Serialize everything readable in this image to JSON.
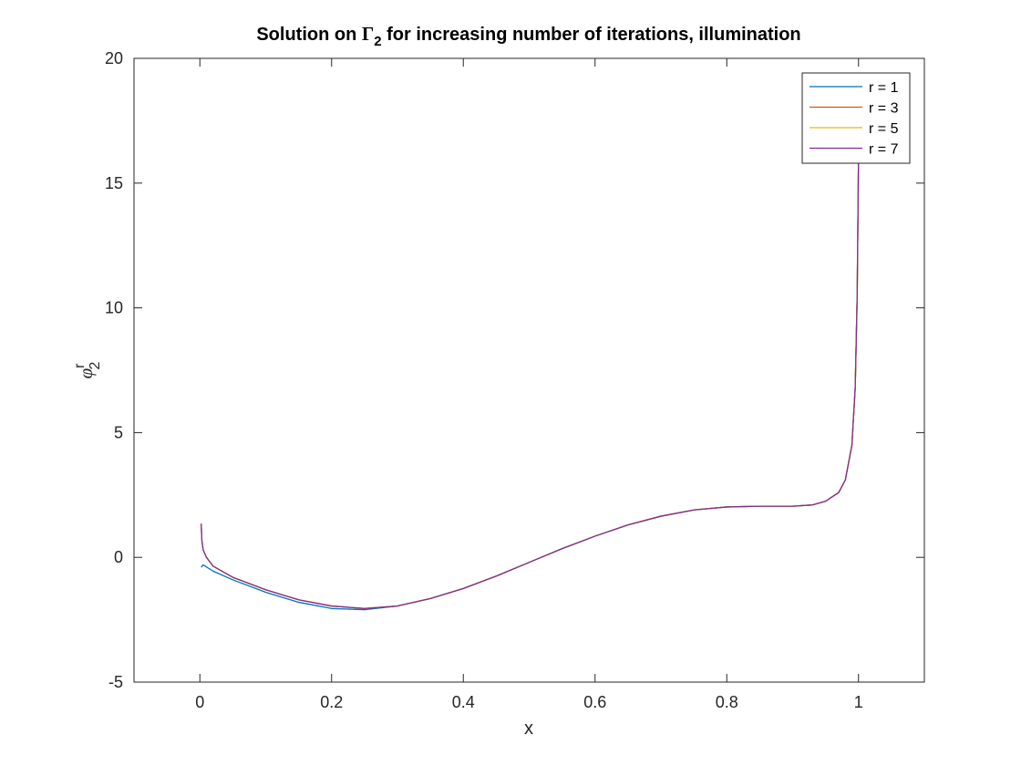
{
  "chart_data": {
    "type": "line",
    "title": {
      "prefix": "Solution on ",
      "symbol": "Γ",
      "subscript": "2",
      "suffix": " for increasing number of iterations, illumination"
    },
    "xlabel": "x",
    "ylabel": {
      "symbol": "φ",
      "superscript": "r",
      "subscript": "2"
    },
    "xlim": [
      -0.1,
      1.1
    ],
    "ylim": [
      -5,
      20
    ],
    "xticks": [
      0,
      0.2,
      0.4,
      0.6,
      0.8,
      1
    ],
    "xtick_labels": [
      "0",
      "0.2",
      "0.4",
      "0.6",
      "0.8",
      "1"
    ],
    "yticks": [
      -5,
      0,
      5,
      10,
      15,
      20
    ],
    "ytick_labels": [
      "-5",
      "0",
      "5",
      "10",
      "15",
      "20"
    ],
    "grid": false,
    "legend_position": "top-right",
    "series": [
      {
        "name": "r = 1",
        "color": "#0072BD",
        "x": [
          0.002,
          0.005,
          0.02,
          0.05,
          0.1,
          0.15,
          0.2,
          0.25,
          0.3,
          0.35,
          0.4,
          0.45,
          0.5,
          0.55,
          0.6,
          0.65,
          0.7,
          0.75,
          0.8,
          0.85,
          0.9,
          0.93,
          0.95,
          0.97,
          0.98,
          0.99,
          0.995,
          0.998,
          1.0
        ],
        "y": [
          -0.4,
          -0.3,
          -0.55,
          -0.9,
          -1.4,
          -1.8,
          -2.05,
          -2.1,
          -1.95,
          -1.65,
          -1.25,
          -0.75,
          -0.2,
          0.35,
          0.85,
          1.3,
          1.65,
          1.9,
          2.02,
          2.05,
          2.05,
          2.1,
          2.25,
          2.6,
          3.1,
          4.5,
          6.8,
          10.5,
          16.0
        ]
      },
      {
        "name": "r = 3",
        "color": "#D95319",
        "x": [
          0.002,
          0.003,
          0.005,
          0.01,
          0.02,
          0.05,
          0.1,
          0.15,
          0.2,
          0.25,
          0.3,
          0.35,
          0.4,
          0.45,
          0.5,
          0.55,
          0.6,
          0.65,
          0.7,
          0.75,
          0.8,
          0.85,
          0.9,
          0.93,
          0.95,
          0.97,
          0.98,
          0.99,
          0.995,
          0.998,
          1.0
        ],
        "y": [
          1.35,
          0.7,
          0.3,
          0.0,
          -0.35,
          -0.8,
          -1.3,
          -1.7,
          -1.95,
          -2.05,
          -1.95,
          -1.65,
          -1.25,
          -0.75,
          -0.2,
          0.35,
          0.85,
          1.3,
          1.65,
          1.9,
          2.02,
          2.05,
          2.05,
          2.1,
          2.25,
          2.6,
          3.1,
          4.5,
          6.8,
          10.5,
          16.0
        ]
      },
      {
        "name": "r = 5",
        "color": "#EDB120",
        "x": [
          0.002,
          0.003,
          0.005,
          0.01,
          0.02,
          0.05,
          0.1,
          0.15,
          0.2,
          0.25,
          0.3,
          0.35,
          0.4,
          0.45,
          0.5,
          0.55,
          0.6,
          0.65,
          0.7,
          0.75,
          0.8,
          0.85,
          0.9,
          0.93,
          0.95,
          0.97,
          0.98,
          0.99,
          0.995,
          0.998,
          1.0
        ],
        "y": [
          1.35,
          0.7,
          0.3,
          0.0,
          -0.35,
          -0.8,
          -1.3,
          -1.7,
          -1.95,
          -2.05,
          -1.95,
          -1.65,
          -1.25,
          -0.75,
          -0.2,
          0.35,
          0.85,
          1.3,
          1.65,
          1.9,
          2.02,
          2.05,
          2.05,
          2.1,
          2.25,
          2.6,
          3.1,
          4.5,
          6.8,
          10.5,
          16.0
        ]
      },
      {
        "name": "r = 7",
        "color": "#7E2F8E",
        "x": [
          0.002,
          0.003,
          0.005,
          0.01,
          0.02,
          0.05,
          0.1,
          0.15,
          0.2,
          0.25,
          0.3,
          0.35,
          0.4,
          0.45,
          0.5,
          0.55,
          0.6,
          0.65,
          0.7,
          0.75,
          0.8,
          0.85,
          0.9,
          0.93,
          0.95,
          0.97,
          0.98,
          0.99,
          0.995,
          0.998,
          1.0
        ],
        "y": [
          1.35,
          0.7,
          0.3,
          0.0,
          -0.35,
          -0.8,
          -1.3,
          -1.7,
          -1.95,
          -2.05,
          -1.95,
          -1.65,
          -1.25,
          -0.75,
          -0.2,
          0.35,
          0.85,
          1.3,
          1.65,
          1.9,
          2.02,
          2.05,
          2.05,
          2.1,
          2.25,
          2.6,
          3.1,
          4.5,
          6.8,
          10.5,
          16.0
        ]
      }
    ]
  }
}
